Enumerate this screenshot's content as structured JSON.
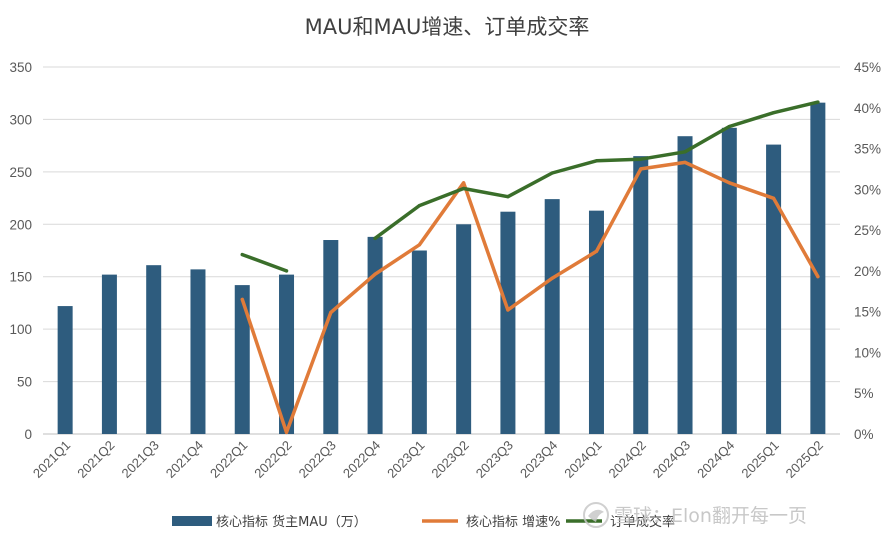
{
  "chart_data": {
    "type": "bar",
    "title": "MAU和MAU增速、订单成交率",
    "categories": [
      "2021Q1",
      "2021Q2",
      "2021Q3",
      "2021Q4",
      "2022Q1",
      "2022Q2",
      "2022Q3",
      "2022Q4",
      "2023Q1",
      "2023Q2",
      "2023Q3",
      "2023Q4",
      "2024Q1",
      "2024Q2",
      "2024Q3",
      "2024Q4",
      "2025Q1",
      "2025Q2"
    ],
    "y_left": {
      "min": 0,
      "max": 350,
      "ticks": [
        0,
        50,
        100,
        150,
        200,
        250,
        300,
        350
      ],
      "tick_labels": [
        "0",
        "50",
        "100",
        "150",
        "200",
        "250",
        "300",
        "350"
      ]
    },
    "y_right": {
      "min": 0,
      "max": 45,
      "ticks": [
        0,
        5,
        10,
        15,
        20,
        25,
        30,
        35,
        40,
        45
      ],
      "tick_labels": [
        "0%",
        "5%",
        "10%",
        "15%",
        "20%",
        "25%",
        "30%",
        "35%",
        "40%",
        "45%"
      ]
    },
    "grid": true,
    "legend_position": "bottom",
    "series": [
      {
        "name": "核心指标 货主MAU（万）",
        "kind": "bar",
        "axis": "left",
        "color": "#2e5c7e",
        "values": [
          122,
          152,
          161,
          157,
          142,
          152,
          185,
          188,
          175,
          200,
          212,
          224,
          213,
          265,
          284,
          292,
          276,
          316
        ]
      },
      {
        "name": "核心指标 增速%",
        "kind": "line",
        "axis": "right",
        "color": "#e07b39",
        "values": [
          null,
          null,
          null,
          null,
          16.5,
          0.2,
          14.9,
          19.6,
          23.2,
          30.8,
          15.2,
          19.1,
          22.4,
          32.5,
          33.3,
          30.8,
          28.9,
          19.3
        ]
      },
      {
        "name": "订单成交率",
        "kind": "line",
        "axis": "right",
        "color": "#3a6e2a",
        "values": [
          null,
          null,
          null,
          null,
          22.0,
          20.0,
          null,
          24.0,
          28.0,
          30.1,
          29.1,
          32.0,
          33.5,
          33.7,
          34.6,
          37.7,
          39.4,
          40.7
        ]
      }
    ]
  },
  "legend": {
    "items": [
      {
        "label": "核心指标 货主MAU（万）",
        "kind": "bar",
        "color": "#2e5c7e"
      },
      {
        "label": "核心指标 增速%",
        "kind": "line",
        "color": "#e07b39"
      },
      {
        "label": "订单成交率",
        "kind": "line",
        "color": "#3a6e2a"
      }
    ]
  },
  "watermark": {
    "text": "雪球：Elon翻开每一页"
  }
}
